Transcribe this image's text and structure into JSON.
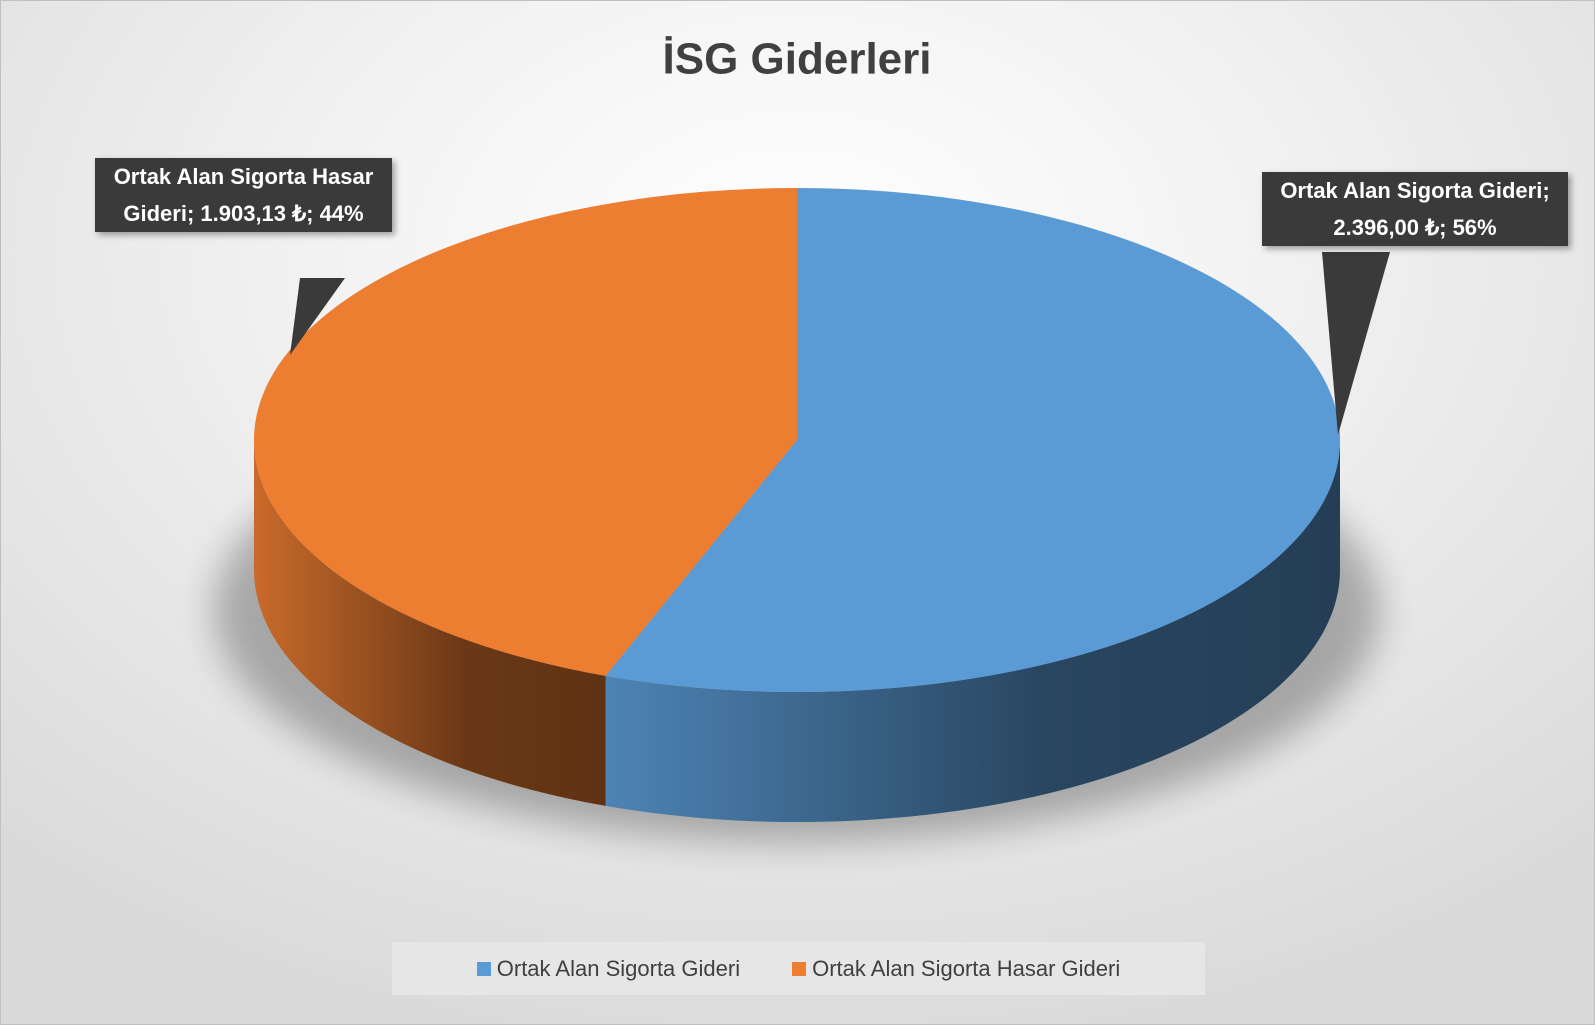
{
  "chart_data": {
    "type": "pie3d",
    "title": "İSG Giderleri",
    "categories": [
      "Ortak Alan Sigorta Gideri",
      "Ortak Alan Sigorta Hasar Gideri"
    ],
    "values": [
      2396.0,
      1903.13
    ],
    "value_labels": [
      "Ortak Alan Sigorta Gideri; 2.396,00 ₺; 56%",
      "Ortak Alan Sigorta Hasar Gideri; 1.903,13 ₺; 44%"
    ],
    "colors": [
      "#5b9bd5",
      "#ed7d31"
    ],
    "legend": "bottom"
  }
}
